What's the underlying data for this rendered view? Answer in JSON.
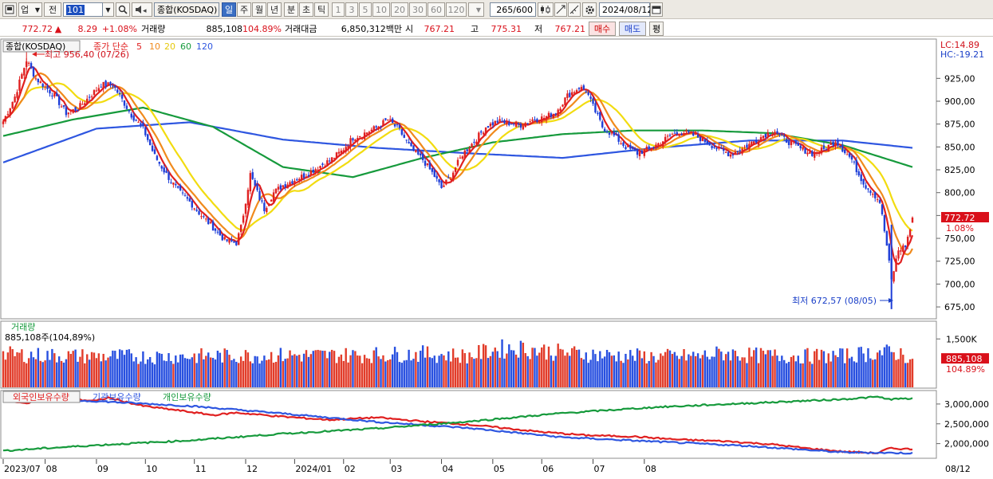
{
  "toolbar": {
    "market_code": "업",
    "prev_label": "전",
    "symbol_code": "101",
    "symbol_name": "종합(KOSDAQ)",
    "periods": [
      "일",
      "주",
      "월",
      "년",
      "분",
      "초",
      "틱"
    ],
    "active_period": "일",
    "intervals": [
      "1",
      "3",
      "5",
      "10",
      "20",
      "30",
      "60",
      "120"
    ],
    "count": "265/600",
    "date": "2024/08/12"
  },
  "info": {
    "price": "772.72",
    "change_arrow": "▲",
    "change": "8.29",
    "change_pct": "+1.08%",
    "volume_label": "거래량",
    "volume": "885,108",
    "volume_pct": "104.89%",
    "amount_label": "거래대금",
    "amount": "6,850,312백만",
    "open_label": "시",
    "open": "767.21",
    "high_label": "고",
    "high": "775.31",
    "low_label": "저",
    "low": "767.21",
    "buy_label": "매수",
    "sell_label": "매도",
    "avg_label": "평"
  },
  "chart_data": [
    {
      "type": "candlestick",
      "title": "종합(KOSDAQ)",
      "legend": [
        {
          "name": "종가 단순",
          "period": "5",
          "color": "#e02020"
        },
        {
          "name": "",
          "period": "10",
          "color": "#f08a1c"
        },
        {
          "name": "",
          "period": "20",
          "color": "#f2dc10"
        },
        {
          "name": "",
          "period": "60",
          "color": "#169a3c"
        },
        {
          "name": "",
          "period": "120",
          "color": "#2e56e0"
        }
      ],
      "ylim": [
        662,
        968
      ],
      "yticks": [
        675,
        700,
        725,
        750,
        775,
        800,
        825,
        850,
        875,
        900,
        925
      ],
      "ytick_labels": [
        "675,00",
        "700,00",
        "725,00",
        "750,00",
        "775,00",
        "800,00",
        "825,00",
        "850,00",
        "875,00",
        "900,00",
        "925,00"
      ],
      "lc_label": "LC:14.89",
      "hc_label": "HC:-19.21",
      "current_price_label": "772.72",
      "current_pct_label": "1.08%",
      "current_value": 772.72,
      "annotation_high": {
        "text": "최고 956,40 (07/26)",
        "value": 956.4
      },
      "annotation_low": {
        "text": "최저 672,57 (08/05)",
        "value": 672.57
      },
      "x_labels": [
        "2023/07",
        "08",
        "09",
        "10",
        "11",
        "12",
        "2024/01",
        "02",
        "03",
        "04",
        "05",
        "06",
        "07",
        "08"
      ],
      "x_label_right": "08/12",
      "close_anchors": [
        [
          0,
          878
        ],
        [
          5,
          905
        ],
        [
          10,
          945
        ],
        [
          14,
          925
        ],
        [
          17,
          918
        ],
        [
          22,
          906
        ],
        [
          27,
          887
        ],
        [
          32,
          892
        ],
        [
          37,
          905
        ],
        [
          42,
          918
        ],
        [
          47,
          918
        ],
        [
          50,
          906
        ],
        [
          55,
          885
        ],
        [
          60,
          870
        ],
        [
          65,
          840
        ],
        [
          70,
          820
        ],
        [
          75,
          802
        ],
        [
          80,
          790
        ],
        [
          85,
          775
        ],
        [
          90,
          762
        ],
        [
          95,
          748
        ],
        [
          100,
          745
        ],
        [
          102,
          762
        ],
        [
          106,
          820
        ],
        [
          109,
          800
        ],
        [
          112,
          782
        ],
        [
          116,
          800
        ],
        [
          120,
          808
        ],
        [
          125,
          814
        ],
        [
          130,
          820
        ],
        [
          135,
          828
        ],
        [
          140,
          835
        ],
        [
          145,
          845
        ],
        [
          150,
          860
        ],
        [
          155,
          865
        ],
        [
          160,
          871
        ],
        [
          165,
          880
        ],
        [
          170,
          868
        ],
        [
          175,
          848
        ],
        [
          180,
          836
        ],
        [
          185,
          818
        ],
        [
          188,
          805
        ],
        [
          192,
          818
        ],
        [
          197,
          842
        ],
        [
          202,
          856
        ],
        [
          207,
          872
        ],
        [
          212,
          878
        ],
        [
          217,
          876
        ],
        [
          222,
          874
        ],
        [
          227,
          880
        ],
        [
          232,
          882
        ],
        [
          237,
          888
        ],
        [
          242,
          906
        ],
        [
          247,
          915
        ],
        [
          250,
          912
        ],
        [
          253,
          894
        ],
        [
          257,
          872
        ],
        [
          262,
          862
        ],
        [
          267,
          850
        ],
        [
          272,
          843
        ],
        [
          277,
          848
        ],
        [
          282,
          855
        ],
        [
          287,
          864
        ],
        [
          292,
          866
        ],
        [
          297,
          862
        ],
        [
          302,
          855
        ],
        [
          307,
          847
        ],
        [
          312,
          842
        ],
        [
          317,
          848
        ],
        [
          322,
          856
        ],
        [
          327,
          864
        ],
        [
          331,
          868
        ],
        [
          334,
          860
        ],
        [
          338,
          854
        ],
        [
          342,
          848
        ],
        [
          347,
          843
        ],
        [
          352,
          847
        ],
        [
          357,
          857
        ],
        [
          360,
          848
        ],
        [
          364,
          836
        ],
        [
          367,
          820
        ],
        [
          370,
          807
        ],
        [
          373,
          800
        ],
        [
          376,
          790
        ],
        [
          379,
          742
        ],
        [
          381,
          704
        ],
        [
          384,
          737
        ],
        [
          387,
          742
        ],
        [
          389,
          760
        ],
        [
          390,
          772.72
        ]
      ],
      "ma60_anchors": [
        [
          0,
          862
        ],
        [
          30,
          880
        ],
        [
          60,
          893
        ],
        [
          90,
          872
        ],
        [
          120,
          828
        ],
        [
          150,
          817
        ],
        [
          180,
          838
        ],
        [
          210,
          855
        ],
        [
          240,
          864
        ],
        [
          270,
          868
        ],
        [
          300,
          868
        ],
        [
          330,
          865
        ],
        [
          360,
          852
        ],
        [
          390,
          828
        ]
      ],
      "ma120_anchors": [
        [
          0,
          833
        ],
        [
          40,
          870
        ],
        [
          80,
          877
        ],
        [
          120,
          858
        ],
        [
          160,
          849
        ],
        [
          200,
          843
        ],
        [
          240,
          838
        ],
        [
          280,
          849
        ],
        [
          320,
          857
        ],
        [
          360,
          857
        ],
        [
          390,
          849
        ]
      ]
    },
    {
      "type": "bar",
      "title": "거래량",
      "series_label": "885,108주(104,89%)",
      "ylim": [
        0,
        2000000
      ],
      "yticks": [
        1500000
      ],
      "ytick_labels": [
        "1,500K"
      ],
      "current_value": 885108,
      "current_value_label": "885,108",
      "current_pct_label": "104.89%",
      "volume_anchors": [
        [
          0,
          1050000
        ],
        [
          30,
          1000000
        ],
        [
          60,
          980000
        ],
        [
          90,
          1000000
        ],
        [
          120,
          1020000
        ],
        [
          150,
          1030000
        ],
        [
          180,
          1070000
        ],
        [
          200,
          1000000
        ],
        [
          210,
          1200000
        ],
        [
          220,
          1260000
        ],
        [
          240,
          1100000
        ],
        [
          260,
          1020000
        ],
        [
          280,
          980000
        ],
        [
          300,
          1000000
        ],
        [
          310,
          1100000
        ],
        [
          320,
          1020000
        ],
        [
          340,
          1000000
        ],
        [
          360,
          1000000
        ],
        [
          375,
          1120000
        ],
        [
          385,
          1080000
        ],
        [
          390,
          885108
        ]
      ],
      "up_color": "#e23c2a",
      "down_color": "#2850e0"
    },
    {
      "type": "line",
      "legend": [
        {
          "name": "외국인보유수량",
          "color": "#e02020"
        },
        {
          "name": "기관보유수량",
          "color": "#2e56e0"
        },
        {
          "name": "개인보유수량",
          "color": "#169a3c"
        }
      ],
      "ylim": [
        1650000,
        3300000
      ],
      "yticks": [
        2000000,
        2500000,
        3000000
      ],
      "ytick_labels": [
        "2,000,000",
        "2,500,000",
        "3,000,000"
      ],
      "series": [
        {
          "name": "외국인보유수량",
          "color": "#e02020",
          "anchors": [
            [
              0,
              3080000
            ],
            [
              10,
              3010000
            ],
            [
              15,
              3150000
            ],
            [
              25,
              3130000
            ],
            [
              40,
              3080000
            ],
            [
              45,
              3160000
            ],
            [
              60,
              2950000
            ],
            [
              75,
              2840000
            ],
            [
              90,
              2720000
            ],
            [
              100,
              2780000
            ],
            [
              120,
              2680000
            ],
            [
              140,
              2600000
            ],
            [
              160,
              2660000
            ],
            [
              180,
              2560000
            ],
            [
              200,
              2480000
            ],
            [
              210,
              2420000
            ],
            [
              230,
              2300000
            ],
            [
              250,
              2210000
            ],
            [
              270,
              2180000
            ],
            [
              290,
              2100000
            ],
            [
              310,
              2060000
            ],
            [
              330,
              1980000
            ],
            [
              345,
              1880000
            ],
            [
              360,
              1800000
            ],
            [
              375,
              1760000
            ],
            [
              380,
              1880000
            ],
            [
              390,
              1860000
            ]
          ]
        },
        {
          "name": "기관보유수량",
          "color": "#2e56e0",
          "anchors": [
            [
              0,
              3150000
            ],
            [
              40,
              3070000
            ],
            [
              80,
              2950000
            ],
            [
              120,
              2760000
            ],
            [
              160,
              2550000
            ],
            [
              200,
              2390000
            ],
            [
              240,
              2160000
            ],
            [
              280,
              2050000
            ],
            [
              320,
              1940000
            ],
            [
              360,
              1780000
            ],
            [
              390,
              1760000
            ]
          ]
        },
        {
          "name": "개인보유수량",
          "color": "#169a3c",
          "anchors": [
            [
              0,
              1820000
            ],
            [
              40,
              1960000
            ],
            [
              80,
              2080000
            ],
            [
              120,
              2250000
            ],
            [
              160,
              2380000
            ],
            [
              200,
              2560000
            ],
            [
              240,
              2770000
            ],
            [
              280,
              2920000
            ],
            [
              320,
              3020000
            ],
            [
              360,
              3120000
            ],
            [
              375,
              3180000
            ],
            [
              380,
              3120000
            ],
            [
              390,
              3140000
            ]
          ]
        }
      ]
    }
  ]
}
